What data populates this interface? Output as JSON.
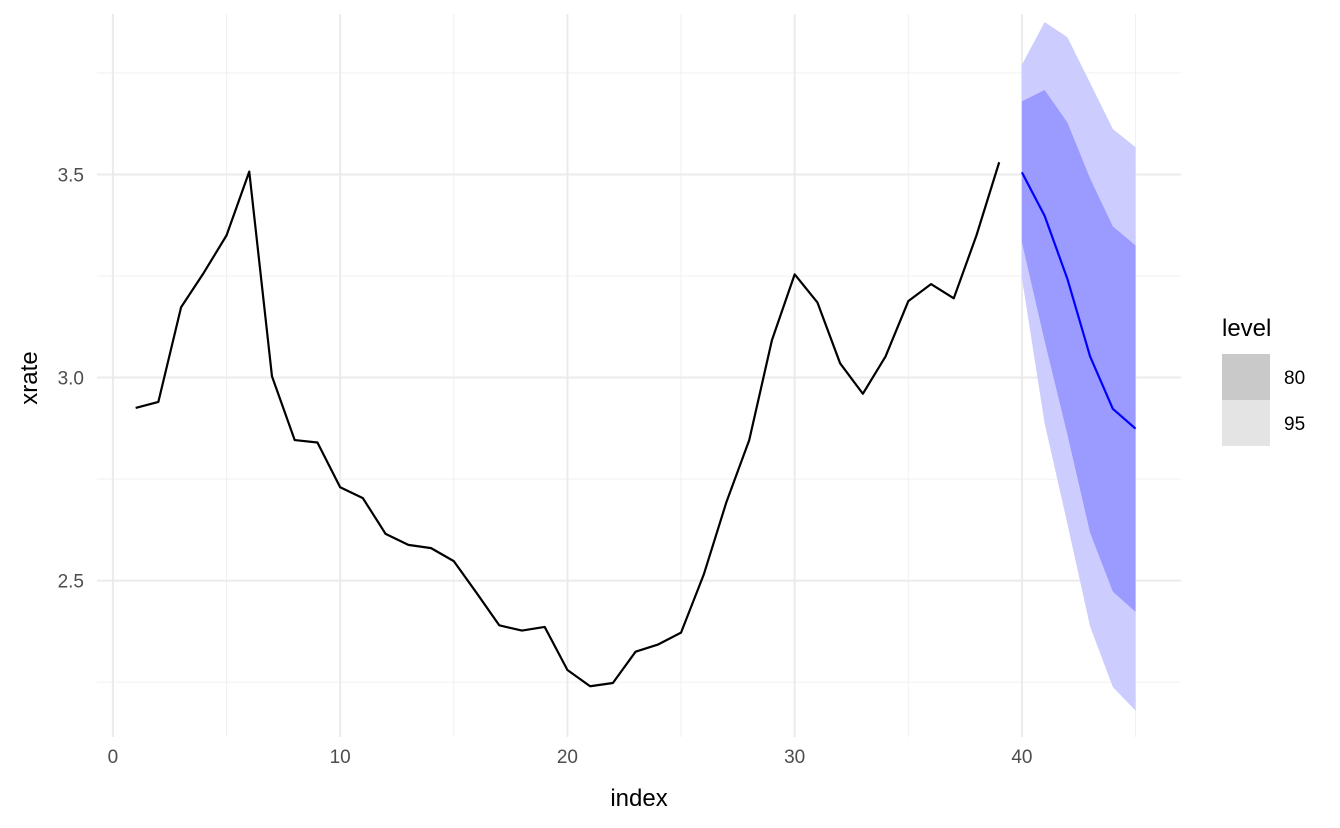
{
  "chart_data": {
    "type": "line",
    "title": "",
    "xlabel": "index",
    "ylabel": "xrate",
    "xlim": [
      -0.7,
      47.0
    ],
    "ylim": [
      2.115,
      3.895
    ],
    "x_ticks": [
      0,
      10,
      20,
      30,
      40
    ],
    "y_ticks": [
      2.5,
      3.0,
      3.5
    ],
    "grid": true,
    "history": {
      "color": "#000000",
      "x": [
        1,
        2,
        3,
        4,
        5,
        6,
        7,
        8,
        9,
        10,
        11,
        12,
        13,
        14,
        15,
        16,
        17,
        18,
        19,
        20,
        21,
        22,
        23,
        24,
        25,
        26,
        27,
        28,
        29,
        30,
        31,
        32,
        33,
        34,
        35,
        36,
        37,
        38,
        39
      ],
      "y": [
        2.925,
        2.94,
        3.173,
        3.258,
        3.35,
        3.507,
        3.003,
        2.846,
        2.84,
        2.73,
        2.703,
        2.615,
        2.588,
        2.58,
        2.548,
        2.47,
        2.39,
        2.377,
        2.386,
        2.28,
        2.24,
        2.248,
        2.325,
        2.343,
        2.372,
        2.515,
        2.694,
        2.846,
        3.092,
        3.254,
        3.185,
        3.035,
        2.96,
        3.052,
        3.188,
        3.23,
        3.195,
        3.35,
        3.53
      ]
    },
    "forecast": {
      "color": "#0000ff",
      "x": [
        40,
        41,
        42,
        43,
        44,
        45
      ],
      "mean": [
        3.505,
        3.398,
        3.243,
        3.052,
        2.923,
        2.874
      ],
      "level80": {
        "lower": [
          3.333,
          3.09,
          2.86,
          2.618,
          2.473,
          2.423
        ],
        "upper": [
          3.68,
          3.708,
          3.628,
          3.49,
          3.372,
          3.325
        ]
      },
      "level95": {
        "lower": [
          3.245,
          2.887,
          2.64,
          2.387,
          2.238,
          2.18
        ],
        "upper": [
          3.77,
          3.875,
          3.838,
          3.725,
          3.612,
          3.567
        ]
      },
      "band80_color": "#9a9aff",
      "band95_color": "#ccccff"
    },
    "legend": {
      "title": "level",
      "position": "right",
      "items": [
        {
          "label": "80",
          "color": "#c9c9c9"
        },
        {
          "label": "95",
          "color": "#e4e4e4"
        }
      ]
    }
  }
}
